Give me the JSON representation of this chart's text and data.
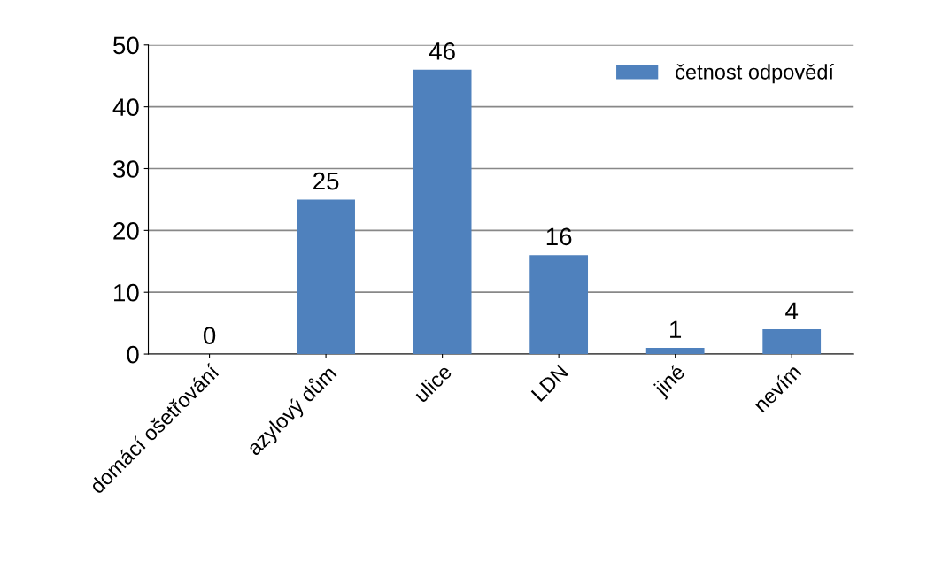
{
  "chart_data": {
    "type": "bar",
    "categories": [
      "domácí ošetřování",
      "azylový dům",
      "ulice",
      "LDN",
      "jiné",
      "nevím"
    ],
    "series": [
      {
        "name": "četnost odpovědí",
        "color": "#4f81bd",
        "values": [
          0,
          25,
          46,
          16,
          1,
          4
        ]
      }
    ],
    "ylim": [
      0,
      50
    ],
    "yticks": [
      0,
      10,
      20,
      30,
      40,
      50
    ],
    "grid": "y",
    "legend": "top right",
    "data_labels": true
  }
}
